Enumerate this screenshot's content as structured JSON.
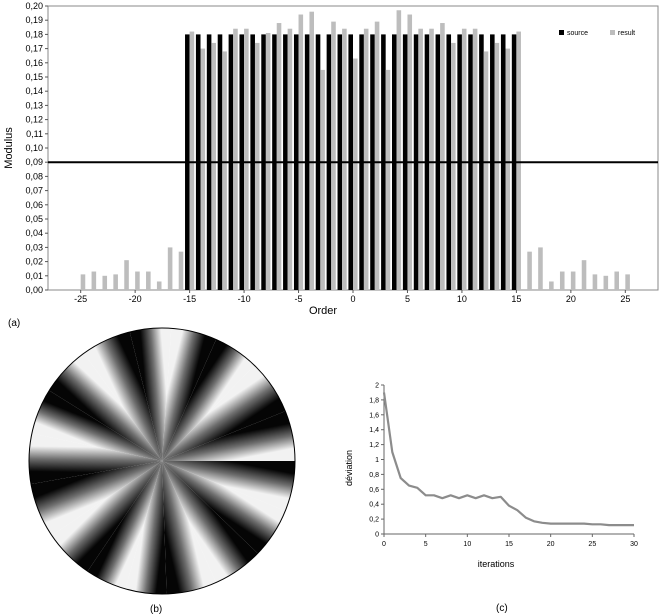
{
  "captions": {
    "a": "(a)",
    "b": "(b)",
    "c": "(c)"
  },
  "colors": {
    "source": "#000000",
    "result": "#bdbdbd",
    "threshold": "#000000",
    "deviation_line": "#8c8c8c"
  },
  "chart_data": [
    {
      "id": "a",
      "type": "bar",
      "xlabel": "Order",
      "ylabel": "Modulus",
      "xlim": [
        -28,
        28
      ],
      "ylim": [
        0,
        0.2
      ],
      "xticks": [
        -25,
        -20,
        -15,
        -10,
        -5,
        0,
        5,
        10,
        15,
        20,
        25
      ],
      "xtick_labels": [
        "-25",
        "-20",
        "-15",
        "-10",
        "-5",
        "0",
        "5",
        "10",
        "15",
        "20",
        "25"
      ],
      "yticks": [
        0,
        0.01,
        0.02,
        0.03,
        0.04,
        0.05,
        0.06,
        0.07,
        0.08,
        0.09,
        0.1,
        0.11,
        0.12,
        0.13,
        0.14,
        0.15,
        0.16,
        0.17,
        0.18,
        0.19,
        0.2
      ],
      "ytick_labels": [
        "0,00",
        "0,01",
        "0,02",
        "0,03",
        "0,04",
        "0,05",
        "0,06",
        "0,07",
        "0,08",
        "0,09",
        "0,10",
        "0,11",
        "0,12",
        "0,13",
        "0,14",
        "0,15",
        "0,16",
        "0,17",
        "0,18",
        "0,19",
        "0,20"
      ],
      "threshold": 0.09,
      "legend_position": "top-right",
      "x": [
        -25,
        -24,
        -23,
        -22,
        -21,
        -20,
        -19,
        -18,
        -17,
        -16,
        -15,
        -14,
        -13,
        -12,
        -11,
        -10,
        -9,
        -8,
        -7,
        -6,
        -5,
        -4,
        -3,
        -2,
        -1,
        0,
        1,
        2,
        3,
        4,
        5,
        6,
        7,
        8,
        9,
        10,
        11,
        12,
        13,
        14,
        15,
        16,
        17,
        18,
        19,
        20,
        21,
        22,
        23,
        24,
        25
      ],
      "series": [
        {
          "name": "source",
          "values": [
            0,
            0,
            0,
            0,
            0,
            0,
            0,
            0,
            0,
            0,
            0.18,
            0.18,
            0.18,
            0.18,
            0.18,
            0.18,
            0.18,
            0.18,
            0.18,
            0.18,
            0.18,
            0.18,
            0.18,
            0.18,
            0.18,
            0.18,
            0.18,
            0.18,
            0.18,
            0.18,
            0.18,
            0.18,
            0.18,
            0.18,
            0.18,
            0.18,
            0.18,
            0.18,
            0.18,
            0.18,
            0.18,
            0,
            0,
            0,
            0,
            0,
            0,
            0,
            0,
            0,
            0
          ]
        },
        {
          "name": "result",
          "values": [
            0.011,
            0.013,
            0.01,
            0.011,
            0.021,
            0.013,
            0.013,
            0.006,
            0.03,
            0.027,
            0.182,
            0.17,
            0.174,
            0.168,
            0.184,
            0.184,
            0.174,
            0.181,
            0.188,
            0.184,
            0.194,
            0.196,
            0.155,
            0.189,
            0.184,
            0.163,
            0.184,
            0.189,
            0.155,
            0.197,
            0.194,
            0.184,
            0.184,
            0.188,
            0.174,
            0.184,
            0.184,
            0.168,
            0.174,
            0.17,
            0.182,
            0.027,
            0.03,
            0.006,
            0.013,
            0.013,
            0.021,
            0.011,
            0.01,
            0.013,
            0.011
          ]
        }
      ]
    },
    {
      "id": "c",
      "type": "line",
      "xlabel": "iterations",
      "ylabel": "déviation",
      "xlim": [
        0,
        30
      ],
      "ylim": [
        0,
        2
      ],
      "xticks": [
        0,
        5,
        10,
        15,
        20,
        25,
        30
      ],
      "xtick_labels": [
        "0",
        "5",
        "10",
        "15",
        "20",
        "25",
        "30"
      ],
      "yticks": [
        0,
        0.2,
        0.4,
        0.6,
        0.8,
        1,
        1.2,
        1.4,
        1.6,
        1.8,
        2
      ],
      "ytick_labels": [
        "0",
        "0,2",
        "0,4",
        "0,6",
        "0,8",
        "1",
        "1,2",
        "1,4",
        "1,6",
        "1,8",
        "2"
      ],
      "x": [
        0,
        1,
        2,
        3,
        4,
        5,
        6,
        7,
        8,
        9,
        10,
        11,
        12,
        13,
        14,
        15,
        16,
        17,
        18,
        19,
        20,
        21,
        22,
        23,
        24,
        25,
        26,
        27,
        28,
        29,
        30
      ],
      "y": [
        1.9,
        1.1,
        0.75,
        0.65,
        0.62,
        0.52,
        0.52,
        0.48,
        0.52,
        0.48,
        0.52,
        0.48,
        0.52,
        0.48,
        0.5,
        0.38,
        0.32,
        0.22,
        0.17,
        0.15,
        0.14,
        0.14,
        0.14,
        0.14,
        0.14,
        0.13,
        0.13,
        0.12,
        0.12,
        0.12,
        0.12
      ]
    }
  ],
  "wheel": {
    "segments": [
      {
        "start": 0,
        "end": 22,
        "dark_at": "end"
      },
      {
        "start": 22,
        "end": 46,
        "dark_at": "start"
      },
      {
        "start": 46,
        "end": 66,
        "dark_at": "end"
      },
      {
        "start": 66,
        "end": 86,
        "dark_at": "start"
      },
      {
        "start": 86,
        "end": 104,
        "dark_at": "end"
      },
      {
        "start": 104,
        "end": 126,
        "dark_at": "start"
      },
      {
        "start": 126,
        "end": 148,
        "dark_at": "end"
      },
      {
        "start": 148,
        "end": 168,
        "dark_at": "start"
      },
      {
        "start": 168,
        "end": 190,
        "dark_at": "end"
      },
      {
        "start": 190,
        "end": 214,
        "dark_at": "start"
      },
      {
        "start": 214,
        "end": 236,
        "dark_at": "end"
      },
      {
        "start": 236,
        "end": 254,
        "dark_at": "start"
      },
      {
        "start": 254,
        "end": 272,
        "dark_at": "end"
      },
      {
        "start": 272,
        "end": 294,
        "dark_at": "start"
      },
      {
        "start": 294,
        "end": 316,
        "dark_at": "end"
      },
      {
        "start": 316,
        "end": 338,
        "dark_at": "start"
      },
      {
        "start": 338,
        "end": 360,
        "dark_at": "end"
      }
    ]
  }
}
